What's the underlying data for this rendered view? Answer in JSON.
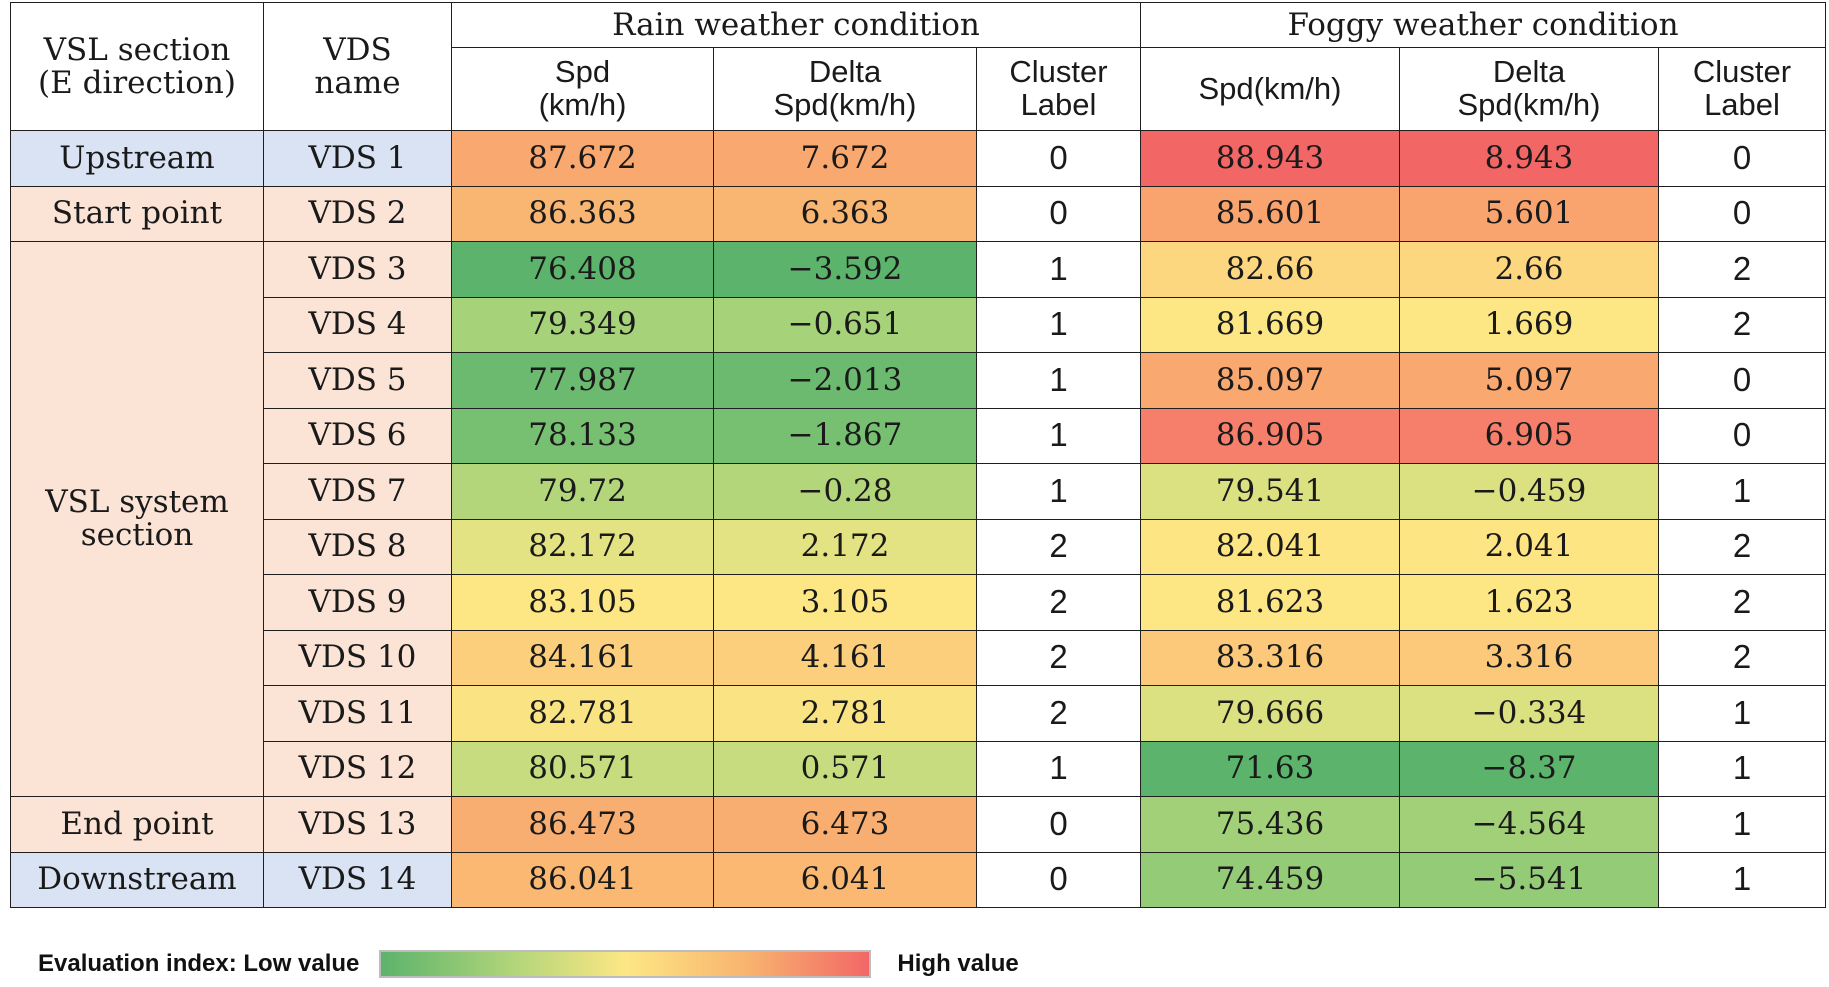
{
  "headers": {
    "section": "VSL section\n(E direction)",
    "vds": "VDS\nname",
    "rain_group": "Rain weather condition",
    "fog_group": "Foggy weather condition",
    "rain_spd": "Spd\n(km/h)",
    "rain_delta": "Delta\nSpd(km/h)",
    "rain_cluster": "Cluster\nLabel",
    "fog_spd": "Spd(km/h)",
    "fog_delta": "Delta\nSpd(km/h)",
    "fog_cluster": "Cluster\nLabel"
  },
  "chart_data": {
    "type": "table",
    "columns": [
      "VSL section (E direction)",
      "VDS name",
      "Rain Spd (km/h)",
      "Rain Delta Spd(km/h)",
      "Rain Cluster Label",
      "Foggy Spd(km/h)",
      "Foggy Delta Spd(km/h)",
      "Foggy Cluster Label"
    ],
    "sections": [
      {
        "label": "Upstream",
        "rows": 1
      },
      {
        "label": "Start point",
        "rows": 1
      },
      {
        "label": "VSL system\nsection",
        "rows": 10
      },
      {
        "label": "End point",
        "rows": 1
      },
      {
        "label": "Downstream",
        "rows": 1
      }
    ],
    "rows": [
      {
        "vds": "VDS 1",
        "rain_spd": "87.672",
        "rain_delta": "7.672",
        "rain_cluster": "0",
        "fog_spd": "88.943",
        "fog_delta": "8.943",
        "fog_cluster": "0"
      },
      {
        "vds": "VDS 2",
        "rain_spd": "86.363",
        "rain_delta": "6.363",
        "rain_cluster": "0",
        "fog_spd": "85.601",
        "fog_delta": "5.601",
        "fog_cluster": "0"
      },
      {
        "vds": "VDS 3",
        "rain_spd": "76.408",
        "rain_delta": "−3.592",
        "rain_cluster": "1",
        "fog_spd": "82.66",
        "fog_delta": "2.66",
        "fog_cluster": "2"
      },
      {
        "vds": "VDS 4",
        "rain_spd": "79.349",
        "rain_delta": "−0.651",
        "rain_cluster": "1",
        "fog_spd": "81.669",
        "fog_delta": "1.669",
        "fog_cluster": "2"
      },
      {
        "vds": "VDS 5",
        "rain_spd": "77.987",
        "rain_delta": "−2.013",
        "rain_cluster": "1",
        "fog_spd": "85.097",
        "fog_delta": "5.097",
        "fog_cluster": "0"
      },
      {
        "vds": "VDS 6",
        "rain_spd": "78.133",
        "rain_delta": "−1.867",
        "rain_cluster": "1",
        "fog_spd": "86.905",
        "fog_delta": "6.905",
        "fog_cluster": "0"
      },
      {
        "vds": "VDS 7",
        "rain_spd": "79.72",
        "rain_delta": "−0.28",
        "rain_cluster": "1",
        "fog_spd": "79.541",
        "fog_delta": "−0.459",
        "fog_cluster": "1"
      },
      {
        "vds": "VDS 8",
        "rain_spd": "82.172",
        "rain_delta": "2.172",
        "rain_cluster": "2",
        "fog_spd": "82.041",
        "fog_delta": "2.041",
        "fog_cluster": "2"
      },
      {
        "vds": "VDS 9",
        "rain_spd": "83.105",
        "rain_delta": "3.105",
        "rain_cluster": "2",
        "fog_spd": "81.623",
        "fog_delta": "1.623",
        "fog_cluster": "2"
      },
      {
        "vds": "VDS 10",
        "rain_spd": "84.161",
        "rain_delta": "4.161",
        "rain_cluster": "2",
        "fog_spd": "83.316",
        "fog_delta": "3.316",
        "fog_cluster": "2"
      },
      {
        "vds": "VDS 11",
        "rain_spd": "82.781",
        "rain_delta": "2.781",
        "rain_cluster": "2",
        "fog_spd": "79.666",
        "fog_delta": "−0.334",
        "fog_cluster": "1"
      },
      {
        "vds": "VDS 12",
        "rain_spd": "80.571",
        "rain_delta": "0.571",
        "rain_cluster": "1",
        "fog_spd": "71.63",
        "fog_delta": "−8.37",
        "fog_cluster": "1"
      },
      {
        "vds": "VDS 13",
        "rain_spd": "86.473",
        "rain_delta": "6.473",
        "rain_cluster": "0",
        "fog_spd": "75.436",
        "fog_delta": "−4.564",
        "fog_cluster": "1"
      },
      {
        "vds": "VDS 14",
        "rain_spd": "86.041",
        "rain_delta": "6.041",
        "rain_cluster": "0",
        "fog_spd": "74.459",
        "fog_delta": "−5.541",
        "fog_cluster": "1"
      }
    ],
    "cell_colors": {
      "rain_spd": [
        "#f9a86f",
        "#f9b672",
        "#5cb36b",
        "#a6d27a",
        "#6cba6f",
        "#77bf71",
        "#b4d67a",
        "#e3e383",
        "#fde784",
        "#fbcf7b",
        "#f9e383",
        "#c6dc7f",
        "#f9ae71",
        "#fbb873"
      ],
      "rain_delta": [
        "#f9a86f",
        "#f9b672",
        "#5cb36b",
        "#a6d27a",
        "#6cba6f",
        "#77bf71",
        "#b4d67a",
        "#e3e383",
        "#fde784",
        "#fbcf7b",
        "#f9e383",
        "#c6dc7f",
        "#f9ae71",
        "#fbb873"
      ],
      "fog_spd": [
        "#f26766",
        "#f9a36e",
        "#fdd77f",
        "#fde784",
        "#f9a86f",
        "#f57f6a",
        "#dbe081",
        "#fde583",
        "#fde784",
        "#fbc979",
        "#dbe081",
        "#5cb36b",
        "#a1d079",
        "#93cb77"
      ],
      "fog_delta": [
        "#f26766",
        "#f9a36e",
        "#fdd77f",
        "#fde784",
        "#f9a86f",
        "#f57f6a",
        "#dbe081",
        "#fde583",
        "#fde784",
        "#fbc979",
        "#dbe081",
        "#5cb36b",
        "#a1d079",
        "#93cb77"
      ]
    },
    "section_colors": {
      "upstream": "#dae3f3",
      "main": "#fbe4d6"
    },
    "legend": {
      "low_label": "Evaluation index: Low value",
      "high_label": "High value",
      "gradient": [
        "#5cb36b",
        "#fde784",
        "#f26766"
      ]
    }
  }
}
